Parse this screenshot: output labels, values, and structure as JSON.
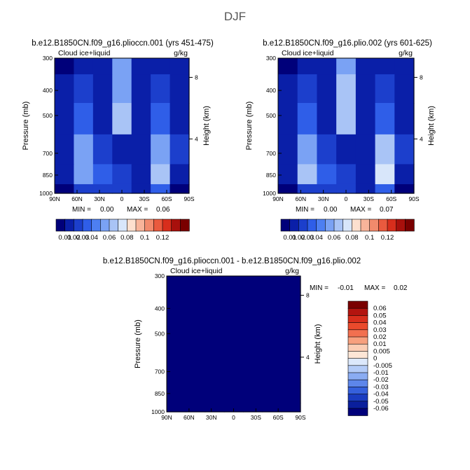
{
  "title": "DJF",
  "panels": [
    {
      "id": "top-left",
      "title": "b.e12.B1850CN.f09_g16.plioccn.001 (yrs 451-475)",
      "variable_label": "Cloud ice+liquid",
      "units": "g/kg",
      "min_label": "MIN =",
      "min_value": "0.00",
      "max_label": "MAX =",
      "max_value": "0.06"
    },
    {
      "id": "top-right",
      "title": "b.e12.B1850CN.f09_g16.plio.002 (yrs 601-625)",
      "variable_label": "Cloud ice+liquid",
      "units": "g/kg",
      "min_label": "MIN =",
      "min_value": "0.00",
      "max_label": "MAX =",
      "max_value": "0.07"
    },
    {
      "id": "bottom-diff",
      "title": "b.e12.B1850CN.f09_g16.plioccn.001 - b.e12.B1850CN.f09_g16.plio.002",
      "variable_label": "Cloud ice+liquid",
      "units": "g/kg",
      "min_label": "MIN =",
      "min_value": "-0.01",
      "max_label": "MAX =",
      "max_value": "0.02"
    }
  ],
  "axes": {
    "y_label": "Pressure (mb)",
    "y2_label": "Height (km)",
    "pressure_ticks": [
      "300",
      "400",
      "500",
      "700",
      "850",
      "1000"
    ],
    "lat_ticks": [
      "90N",
      "60N",
      "30N",
      "0",
      "30S",
      "60S",
      "90S"
    ],
    "height_ticks": [
      "8",
      "4"
    ]
  },
  "colorbar_top": {
    "labels": [
      "0.01",
      "0.02",
      "0.03",
      "0.04",
      "0.06",
      "0.08",
      "0.1",
      "0.12"
    ],
    "colors": [
      "#00007a",
      "#0a1fa8",
      "#1c3fcc",
      "#2f5ee8",
      "#4d7ff2",
      "#7aa2f4",
      "#a9c4f6",
      "#d8e6fa",
      "#fde0cf",
      "#f8b49a",
      "#f28a6c",
      "#ea5a3e",
      "#d82e1c",
      "#a8100c",
      "#7a0000"
    ]
  },
  "colorbar_diff": {
    "labels": [
      "0.06",
      "0.05",
      "0.04",
      "0.03",
      "0.02",
      "0.01",
      "0.005",
      "0",
      "-0.005",
      "-0.01",
      "-0.02",
      "-0.03",
      "-0.04",
      "-0.05",
      "-0.06"
    ],
    "colors": [
      "#7a0000",
      "#b3140f",
      "#d82e1c",
      "#ea4a2c",
      "#f27050",
      "#f7a07e",
      "#fbcdb4",
      "#fde6d6",
      "#dce8fb",
      "#b3cbf7",
      "#8aacf2",
      "#5d86ea",
      "#3560dc",
      "#1a3cc0",
      "#0a1f9c",
      "#00007a"
    ]
  },
  "chart_data": [
    {
      "type": "heatmap",
      "title": "b.e12.B1850CN.f09_g16.plioccn.001 (yrs 451-475)",
      "xlabel": "",
      "ylabel": "Pressure (mb)",
      "x": [
        "90N",
        "60N",
        "30N",
        "0",
        "30S",
        "60S",
        "90S"
      ],
      "y": [
        300,
        400,
        500,
        700,
        850,
        1000
      ],
      "y_scale": "log",
      "value_range": [
        0.0,
        0.06
      ],
      "values": [
        [
          0.005,
          0.01,
          0.01,
          0.04,
          0.01,
          0.01,
          0.01
        ],
        [
          0.01,
          0.02,
          0.01,
          0.04,
          0.01,
          0.02,
          0.01
        ],
        [
          0.01,
          0.03,
          0.01,
          0.05,
          0.01,
          0.03,
          0.01
        ],
        [
          0.01,
          0.04,
          0.02,
          0.01,
          0.01,
          0.04,
          0.02
        ],
        [
          0.01,
          0.04,
          0.03,
          0.02,
          0.01,
          0.05,
          0.01
        ],
        [
          0.005,
          0.02,
          0.02,
          0.02,
          0.01,
          0.03,
          0.005
        ]
      ]
    },
    {
      "type": "heatmap",
      "title": "b.e12.B1850CN.f09_g16.plio.002 (yrs 601-625)",
      "xlabel": "",
      "ylabel": "Pressure (mb)",
      "x": [
        "90N",
        "60N",
        "30N",
        "0",
        "30S",
        "60S",
        "90S"
      ],
      "y": [
        300,
        400,
        500,
        700,
        850,
        1000
      ],
      "y_scale": "log",
      "value_range": [
        0.0,
        0.07
      ],
      "values": [
        [
          0.005,
          0.01,
          0.01,
          0.04,
          0.01,
          0.01,
          0.01
        ],
        [
          0.01,
          0.02,
          0.01,
          0.05,
          0.01,
          0.02,
          0.01
        ],
        [
          0.01,
          0.03,
          0.01,
          0.05,
          0.01,
          0.03,
          0.01
        ],
        [
          0.01,
          0.04,
          0.02,
          0.01,
          0.01,
          0.05,
          0.02
        ],
        [
          0.01,
          0.05,
          0.03,
          0.02,
          0.01,
          0.06,
          0.01
        ],
        [
          0.005,
          0.02,
          0.02,
          0.02,
          0.01,
          0.03,
          0.005
        ]
      ]
    },
    {
      "type": "heatmap",
      "title": "b.e12.B1850CN.f09_g16.plioccn.001 - b.e12.B1850CN.f09_g16.plio.002",
      "xlabel": "",
      "ylabel": "Pressure (mb)",
      "x": [
        "90N",
        "60N",
        "30N",
        "0",
        "30S",
        "60S",
        "90S"
      ],
      "y": [
        300,
        400,
        500,
        700,
        850,
        1000
      ],
      "y_scale": "log",
      "value_range": [
        -0.01,
        0.02
      ],
      "values": [
        [
          0.002,
          0.002,
          0.002,
          0.002,
          0.002,
          0.002,
          0.002
        ],
        [
          0.002,
          0.002,
          -0.002,
          -0.002,
          -0.002,
          0.002,
          0.002
        ],
        [
          0.002,
          0.002,
          -0.002,
          -0.004,
          -0.002,
          -0.002,
          0.002
        ],
        [
          0.004,
          -0.002,
          -0.004,
          -0.002,
          -0.002,
          -0.004,
          0.002
        ],
        [
          0.004,
          -0.002,
          -0.004,
          -0.002,
          -0.002,
          -0.006,
          0.002
        ],
        [
          0.004,
          -0.002,
          -0.002,
          -0.002,
          -0.002,
          -0.002,
          0.0
        ]
      ]
    }
  ]
}
